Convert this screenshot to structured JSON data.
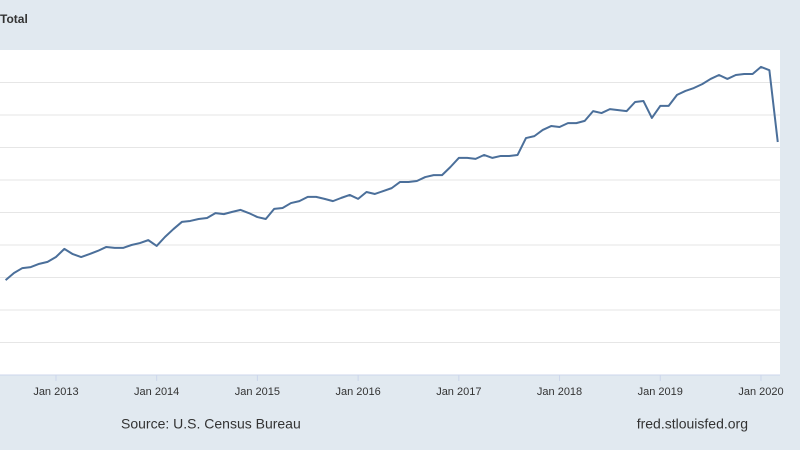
{
  "chart_data": {
    "type": "line",
    "title": "Total",
    "source": "Source: U.S. Census Bureau",
    "site": "fred.stlouisfed.org",
    "x": [
      "2012-07",
      "2012-08",
      "2012-09",
      "2012-10",
      "2012-11",
      "2012-12",
      "2013-01",
      "2013-02",
      "2013-03",
      "2013-04",
      "2013-05",
      "2013-06",
      "2013-07",
      "2013-08",
      "2013-09",
      "2013-10",
      "2013-11",
      "2013-12",
      "2014-01",
      "2014-02",
      "2014-03",
      "2014-04",
      "2014-05",
      "2014-06",
      "2014-07",
      "2014-08",
      "2014-09",
      "2014-10",
      "2014-11",
      "2014-12",
      "2015-01",
      "2015-02",
      "2015-03",
      "2015-04",
      "2015-05",
      "2015-06",
      "2015-07",
      "2015-08",
      "2015-09",
      "2015-10",
      "2015-11",
      "2015-12",
      "2016-01",
      "2016-02",
      "2016-03",
      "2016-04",
      "2016-05",
      "2016-06",
      "2016-07",
      "2016-08",
      "2016-09",
      "2016-10",
      "2016-11",
      "2016-12",
      "2017-01",
      "2017-02",
      "2017-03",
      "2017-04",
      "2017-05",
      "2017-06",
      "2017-07",
      "2017-08",
      "2017-09",
      "2017-10",
      "2017-11",
      "2017-12",
      "2018-01",
      "2018-02",
      "2018-03",
      "2018-04",
      "2018-05",
      "2018-06",
      "2018-07",
      "2018-08",
      "2018-09",
      "2018-10",
      "2018-11",
      "2018-12",
      "2019-01",
      "2019-02",
      "2019-03",
      "2019-04",
      "2019-05",
      "2019-06",
      "2019-07",
      "2019-08",
      "2019-09",
      "2019-10",
      "2019-11",
      "2019-12",
      "2020-01",
      "2020-02",
      "2020-03"
    ],
    "series": [
      {
        "name": "Total",
        "color": "#4b6f9a",
        "values": [
          2.92,
          3.14,
          3.29,
          3.32,
          3.42,
          3.48,
          3.63,
          3.88,
          3.72,
          3.63,
          3.72,
          3.82,
          3.94,
          3.91,
          3.91,
          4.0,
          4.06,
          4.15,
          3.97,
          4.25,
          4.49,
          4.71,
          4.74,
          4.8,
          4.83,
          4.98,
          4.95,
          5.02,
          5.08,
          4.98,
          4.86,
          4.8,
          5.11,
          5.14,
          5.29,
          5.35,
          5.48,
          5.48,
          5.42,
          5.35,
          5.45,
          5.54,
          5.42,
          5.63,
          5.57,
          5.66,
          5.75,
          5.94,
          5.94,
          5.97,
          6.09,
          6.15,
          6.15,
          6.4,
          6.68,
          6.68,
          6.65,
          6.77,
          6.68,
          6.74,
          6.74,
          6.77,
          7.29,
          7.35,
          7.54,
          7.66,
          7.63,
          7.75,
          7.75,
          7.82,
          8.12,
          8.06,
          8.18,
          8.15,
          8.12,
          8.4,
          8.43,
          7.91,
          8.28,
          8.28,
          8.62,
          8.74,
          8.83,
          8.95,
          9.11,
          9.23,
          9.11,
          9.23,
          9.26,
          9.26,
          9.48,
          9.38,
          7.17
        ]
      }
    ],
    "xlim": [
      "2012-06-11",
      "2020-03-09"
    ],
    "xticks": [
      {
        "value": "2013-01",
        "label": "Jan 2013"
      },
      {
        "value": "2014-01",
        "label": "Jan 2014"
      },
      {
        "value": "2015-01",
        "label": "Jan 2015"
      },
      {
        "value": "2016-01",
        "label": "Jan 2016"
      },
      {
        "value": "2017-01",
        "label": "Jan 2017"
      },
      {
        "value": "2018-01",
        "label": "Jan 2018"
      },
      {
        "value": "2019-01",
        "label": "Jan 2019"
      },
      {
        "value": "2020-01",
        "label": "Jan 2020"
      }
    ],
    "ylim": [
      0,
      10
    ],
    "ygrid": [
      1,
      2,
      3,
      4,
      5,
      6,
      7,
      8,
      9
    ],
    "grid": true
  }
}
